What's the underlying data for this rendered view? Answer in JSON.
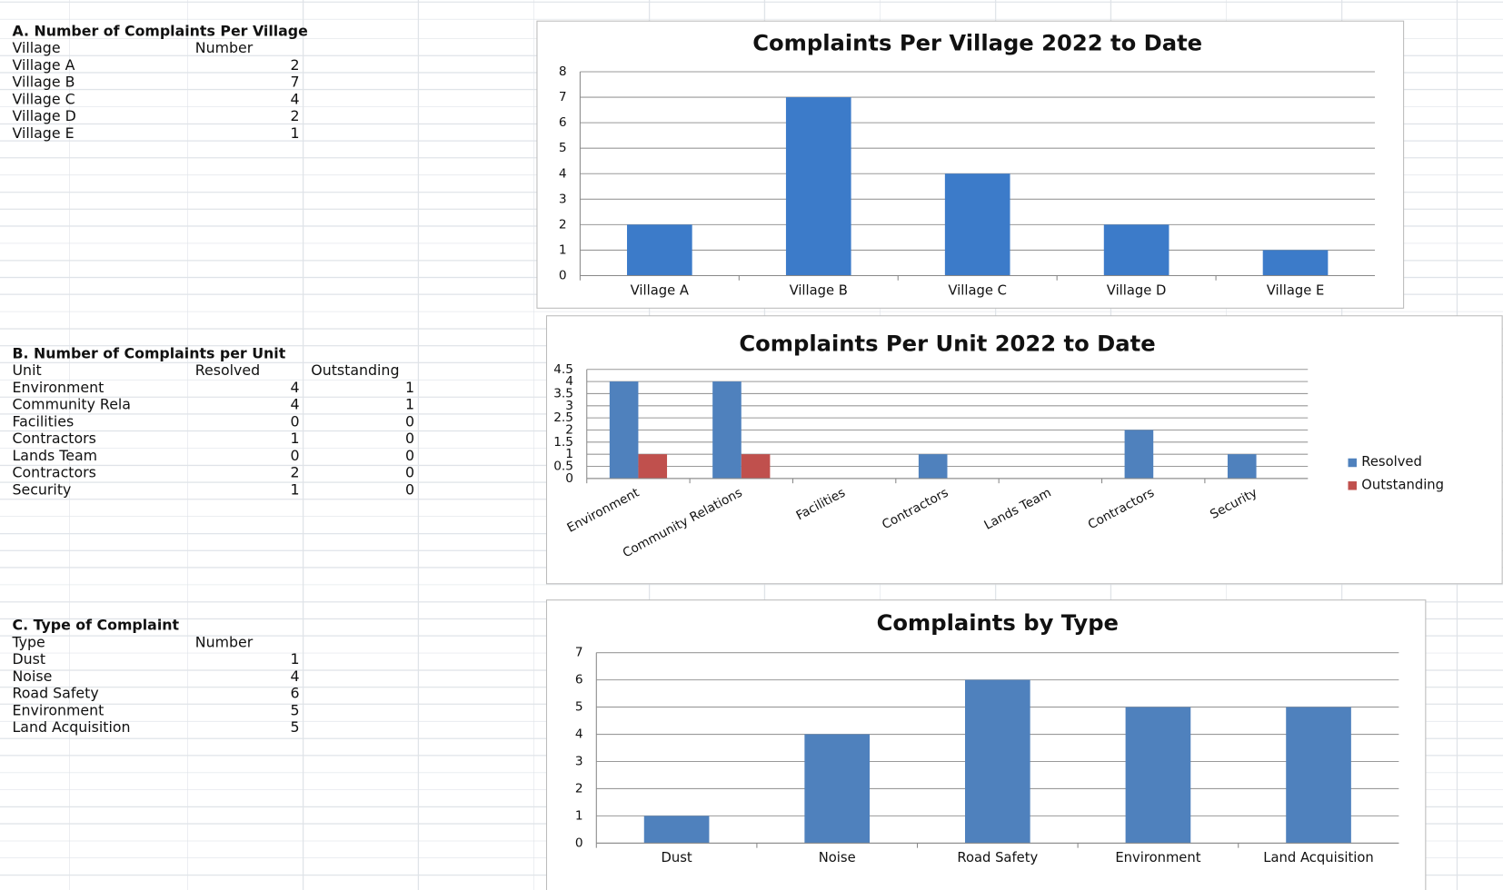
{
  "tables": [
    {
      "title": "A. Number of Complaints Per Village",
      "header": [
        "Village",
        "Number"
      ],
      "rows": [
        [
          "Village A",
          "2"
        ],
        [
          "Village B",
          "7"
        ],
        [
          "Village C",
          "4"
        ],
        [
          "Village D",
          "2"
        ],
        [
          "Village E",
          "1"
        ]
      ]
    },
    {
      "title": "B. Number of Complaints per Unit",
      "header": [
        "Unit",
        "Resolved",
        "Outstanding"
      ],
      "rows": [
        [
          "Environment",
          "4",
          "1"
        ],
        [
          "Community Rela",
          "4",
          "1"
        ],
        [
          "Facilities",
          "0",
          "0"
        ],
        [
          "Contractors",
          "1",
          "0"
        ],
        [
          "Lands Team",
          "0",
          "0"
        ],
        [
          "Contractors",
          "2",
          "0"
        ],
        [
          "Security",
          "1",
          "0"
        ]
      ]
    },
    {
      "title": "C. Type of Complaint",
      "header": [
        "Type",
        "Number"
      ],
      "rows": [
        [
          "Dust",
          "1"
        ],
        [
          "Noise",
          "4"
        ],
        [
          "Road Safety",
          "6"
        ],
        [
          "Environment",
          "5"
        ],
        [
          "Land Acquisition",
          "5"
        ]
      ]
    }
  ],
  "chart_data": [
    {
      "type": "bar",
      "title": "Complaints Per Village 2022 to Date",
      "categories": [
        "Village A",
        "Village B",
        "Village C",
        "Village D",
        "Village E"
      ],
      "values": [
        2,
        7,
        4,
        2,
        1
      ],
      "color": "#3c7bc9",
      "ylim": [
        0,
        8
      ],
      "yticks": [
        0,
        1,
        2,
        3,
        4,
        5,
        6,
        7,
        8
      ],
      "grid": true
    },
    {
      "type": "grouped_bar",
      "title": "Complaints Per Unit 2022 to Date",
      "categories": [
        "Environment",
        "Community Relations",
        "Facilities",
        "Contractors",
        "Lands Team",
        "Contractors",
        "Security"
      ],
      "series": [
        {
          "name": "Resolved",
          "color": "#4f81bd",
          "values": [
            4,
            4,
            0,
            1,
            0,
            2,
            1
          ]
        },
        {
          "name": "Outstanding",
          "color": "#c0504d",
          "values": [
            1,
            1,
            0,
            0,
            0,
            0,
            0
          ]
        }
      ],
      "ylim": [
        0,
        4.5
      ],
      "yticks": [
        0,
        0.5,
        1,
        1.5,
        2,
        2.5,
        3,
        3.5,
        4,
        4.5
      ],
      "grid": true,
      "legend": "right"
    },
    {
      "type": "bar",
      "title": "Complaints by Type",
      "categories": [
        "Dust",
        "Noise",
        "Road Safety",
        "Environment",
        "Land Acquisition"
      ],
      "values": [
        1,
        4,
        6,
        5,
        5
      ],
      "color": "#4f81bd",
      "ylim": [
        0,
        7
      ],
      "yticks": [
        0,
        1,
        2,
        3,
        4,
        5,
        6,
        7
      ],
      "grid": true
    }
  ]
}
